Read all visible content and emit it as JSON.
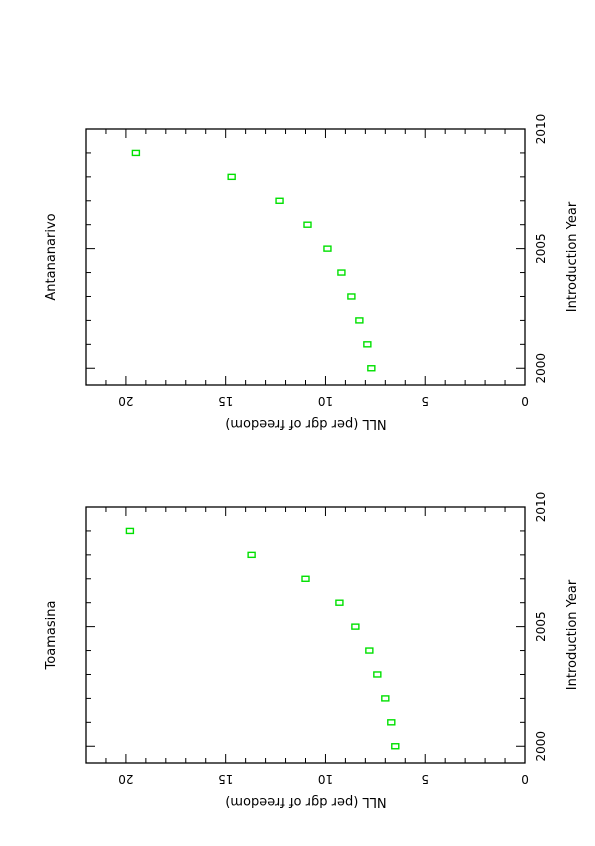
{
  "chart_data": [
    {
      "type": "scatter",
      "title": "Antananarivo",
      "xlabel": "Introduction Year",
      "ylabel": "NLL (per dgr of freedom)",
      "xlim": [
        1999.3,
        2010
      ],
      "ylim": [
        0,
        22
      ],
      "x_ticks": [
        "2000",
        "2005",
        "2010"
      ],
      "y_ticks": [
        "0",
        "5",
        "10",
        "15",
        "20"
      ],
      "marker_color": "#00e000",
      "points": [
        {
          "x": 2000,
          "y": 7.7
        },
        {
          "x": 2001,
          "y": 7.9
        },
        {
          "x": 2002,
          "y": 8.3
        },
        {
          "x": 2003,
          "y": 8.7
        },
        {
          "x": 2004,
          "y": 9.2
        },
        {
          "x": 2005,
          "y": 9.9
        },
        {
          "x": 2006,
          "y": 10.9
        },
        {
          "x": 2007,
          "y": 12.3
        },
        {
          "x": 2008,
          "y": 14.7
        },
        {
          "x": 2009,
          "y": 19.5
        }
      ]
    },
    {
      "type": "scatter",
      "title": "Toamasina",
      "xlabel": "Introduction Year",
      "ylabel": "NLL (per dgr of freedom)",
      "xlim": [
        1999.3,
        2010
      ],
      "ylim": [
        0,
        22
      ],
      "x_ticks": [
        "2000",
        "2005",
        "2010"
      ],
      "y_ticks": [
        "0",
        "5",
        "10",
        "15",
        "20"
      ],
      "marker_color": "#00e000",
      "points": [
        {
          "x": 2000,
          "y": 6.5
        },
        {
          "x": 2001,
          "y": 6.7
        },
        {
          "x": 2002,
          "y": 7.0
        },
        {
          "x": 2003,
          "y": 7.4
        },
        {
          "x": 2004,
          "y": 7.8
        },
        {
          "x": 2005,
          "y": 8.5
        },
        {
          "x": 2006,
          "y": 9.3
        },
        {
          "x": 2007,
          "y": 11.0
        },
        {
          "x": 2008,
          "y": 13.7
        },
        {
          "x": 2009,
          "y": 19.8
        }
      ]
    }
  ]
}
